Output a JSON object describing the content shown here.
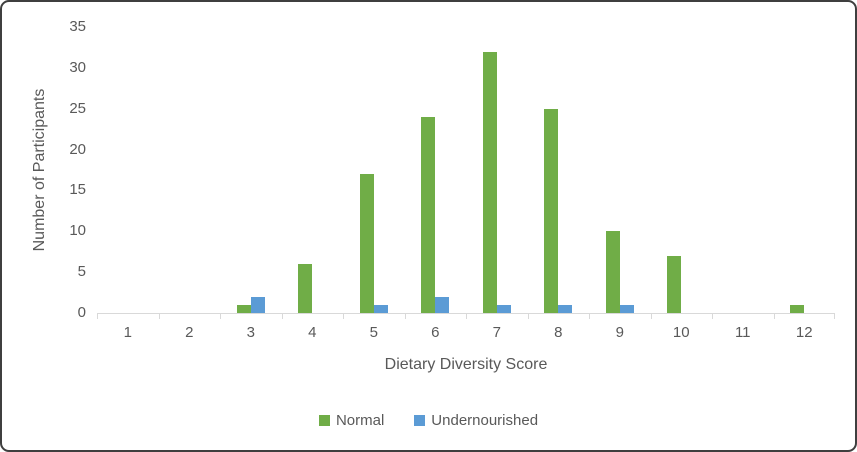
{
  "chart_data": {
    "type": "bar",
    "title": "",
    "xlabel": "Dietary Diversity Score",
    "ylabel": "Number of Participants",
    "categories": [
      "1",
      "2",
      "3",
      "4",
      "5",
      "6",
      "7",
      "8",
      "9",
      "10",
      "11",
      "12"
    ],
    "series": [
      {
        "name": "Normal",
        "color": "#70AD47",
        "values": [
          0,
          0,
          1,
          6,
          17,
          24,
          32,
          25,
          10,
          7,
          0,
          1
        ]
      },
      {
        "name": "Undernourished",
        "color": "#5B9BD5",
        "values": [
          0,
          0,
          2,
          0,
          1,
          2,
          1,
          1,
          1,
          0,
          0,
          0
        ]
      }
    ],
    "ylim": [
      0,
      35
    ],
    "ytick_step": 5,
    "yticks": [
      0,
      5,
      10,
      15,
      20,
      25,
      30,
      35
    ],
    "grid": false,
    "legend_position": "bottom"
  },
  "colors": {
    "text": "#595959",
    "axis_line": "#d9d9d9",
    "frame_border": "#3f3f3f",
    "background": "#ffffff"
  }
}
